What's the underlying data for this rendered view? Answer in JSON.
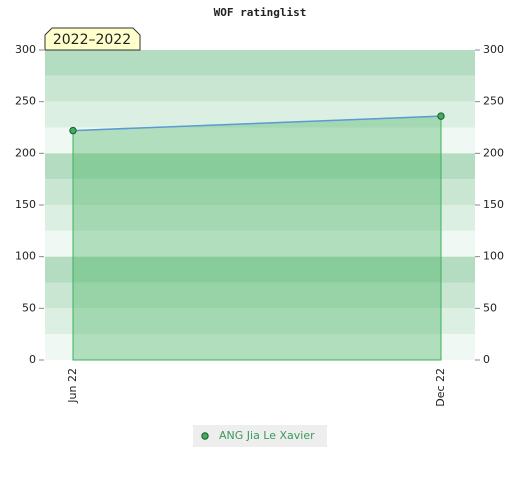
{
  "chart_data": {
    "type": "line",
    "title": "WOF ratinglist",
    "annotation": "2022–2022",
    "categories": [
      "Jun 22",
      "Dec 22"
    ],
    "series": [
      {
        "name": "ANG Jia Le Xavier",
        "color": "#3cb05a",
        "line_color": "#5b9bd5",
        "values": [
          222,
          236
        ]
      }
    ],
    "ylim": [
      0,
      300
    ],
    "yticks": [
      0,
      50,
      100,
      150,
      200,
      250,
      300
    ],
    "y2lim": [
      0,
      300
    ],
    "y2ticks": [
      0,
      50,
      100,
      150,
      200,
      250,
      300
    ]
  }
}
